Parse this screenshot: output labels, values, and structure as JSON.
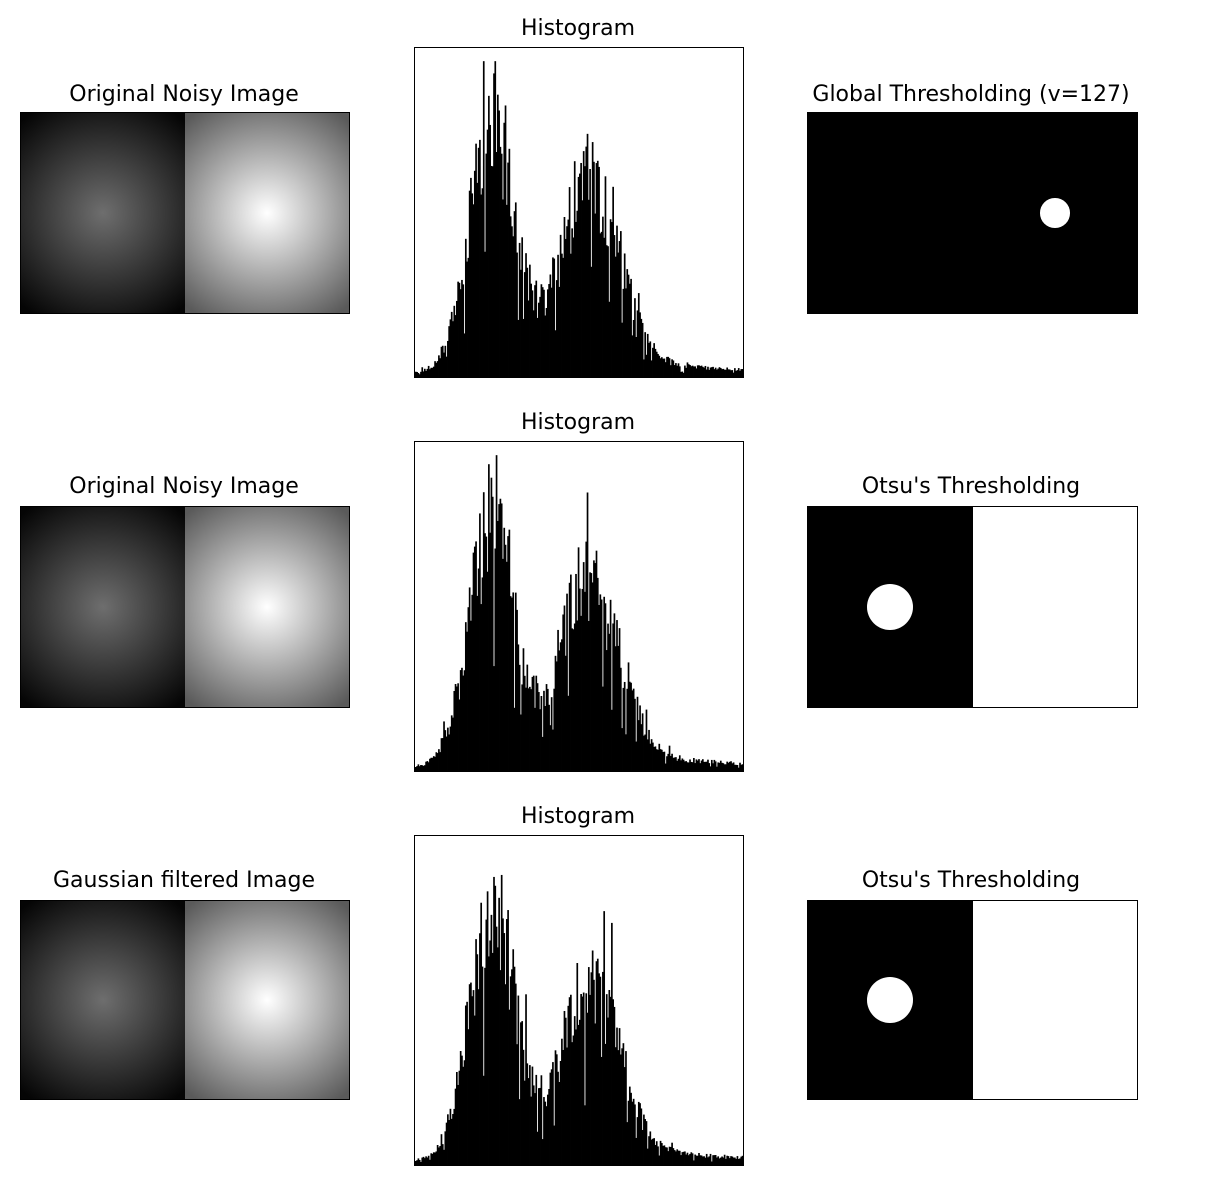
{
  "chart_data": [
    {
      "type": "image",
      "title": "Original Noisy Image",
      "halves": [
        {
          "center_color": "#6e6e6e",
          "edge_color": "#050505"
        },
        {
          "center_color": "#ffffff",
          "edge_color": "#5a5a5a"
        }
      ]
    },
    {
      "type": "bar",
      "title": "Histogram",
      "xlim": [
        0,
        255
      ],
      "bins": 256,
      "series": [
        {
          "values_generator": "bimodal",
          "peaks": [
            {
              "center": 60,
              "height": 0.75,
              "width": 18
            },
            {
              "center": 135,
              "height": 0.58,
              "width": 22
            }
          ]
        }
      ]
    },
    {
      "type": "image",
      "title": "Global Thresholding (v=127)",
      "background": "#000000",
      "spots": [
        {
          "cx": 0.75,
          "cy": 0.5,
          "r": 0.045,
          "color": "#ffffff"
        }
      ]
    },
    {
      "type": "image",
      "title": "Original Noisy Image",
      "halves": [
        {
          "center_color": "#6e6e6e",
          "edge_color": "#050505"
        },
        {
          "center_color": "#ffffff",
          "edge_color": "#5a5a5a"
        }
      ]
    },
    {
      "type": "bar",
      "title": "Histogram",
      "xlim": [
        0,
        255
      ],
      "bins": 256,
      "series": [
        {
          "values_generator": "bimodal",
          "peaks": [
            {
              "center": 60,
              "height": 0.75,
              "width": 18
            },
            {
              "center": 135,
              "height": 0.58,
              "width": 22
            }
          ]
        }
      ]
    },
    {
      "type": "image",
      "title": "Otsu's Thresholding",
      "split": [
        {
          "color": "#000000"
        },
        {
          "color": "#ffffff"
        }
      ],
      "spots": [
        {
          "cx": 0.25,
          "cy": 0.5,
          "r": 0.07,
          "color": "#ffffff"
        }
      ]
    },
    {
      "type": "image",
      "title": "Gaussian filtered Image",
      "halves": [
        {
          "center_color": "#6e6e6e",
          "edge_color": "#050505"
        },
        {
          "center_color": "#ffffff",
          "edge_color": "#5a5a5a"
        }
      ]
    },
    {
      "type": "bar",
      "title": "Histogram",
      "xlim": [
        0,
        255
      ],
      "bins": 256,
      "series": [
        {
          "values_generator": "bimodal",
          "peaks": [
            {
              "center": 60,
              "height": 0.75,
              "width": 18
            },
            {
              "center": 135,
              "height": 0.52,
              "width": 22
            }
          ]
        }
      ]
    },
    {
      "type": "image",
      "title": "Otsu's Thresholding",
      "split": [
        {
          "color": "#000000"
        },
        {
          "color": "#ffffff"
        }
      ],
      "spots": [
        {
          "cx": 0.25,
          "cy": 0.5,
          "r": 0.07,
          "color": "#ffffff"
        }
      ]
    }
  ]
}
